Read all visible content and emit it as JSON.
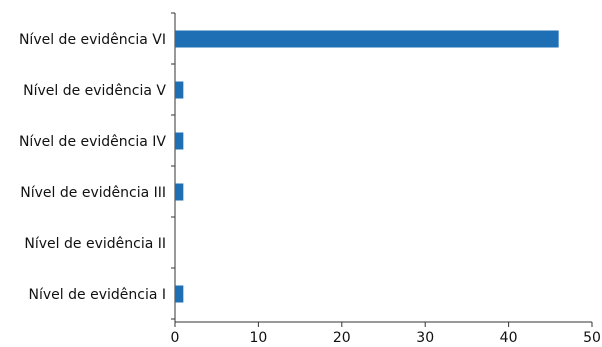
{
  "chart_data": {
    "type": "bar",
    "orientation": "horizontal",
    "categories": [
      "Nível de evidência VI",
      "Nível de evidência V",
      "Nível de evidência IV",
      "Nível de evidência III",
      "Nível de evidência II",
      "Nível de evidência I"
    ],
    "values": [
      46,
      1,
      1,
      1,
      0,
      1
    ],
    "xlim": [
      0,
      50
    ],
    "xticks": [
      0,
      10,
      20,
      30,
      40,
      50
    ],
    "title": "",
    "xlabel": "",
    "ylabel": "",
    "grid": false,
    "bar_color": "#1f6fb5",
    "axis_color": "#333333"
  }
}
